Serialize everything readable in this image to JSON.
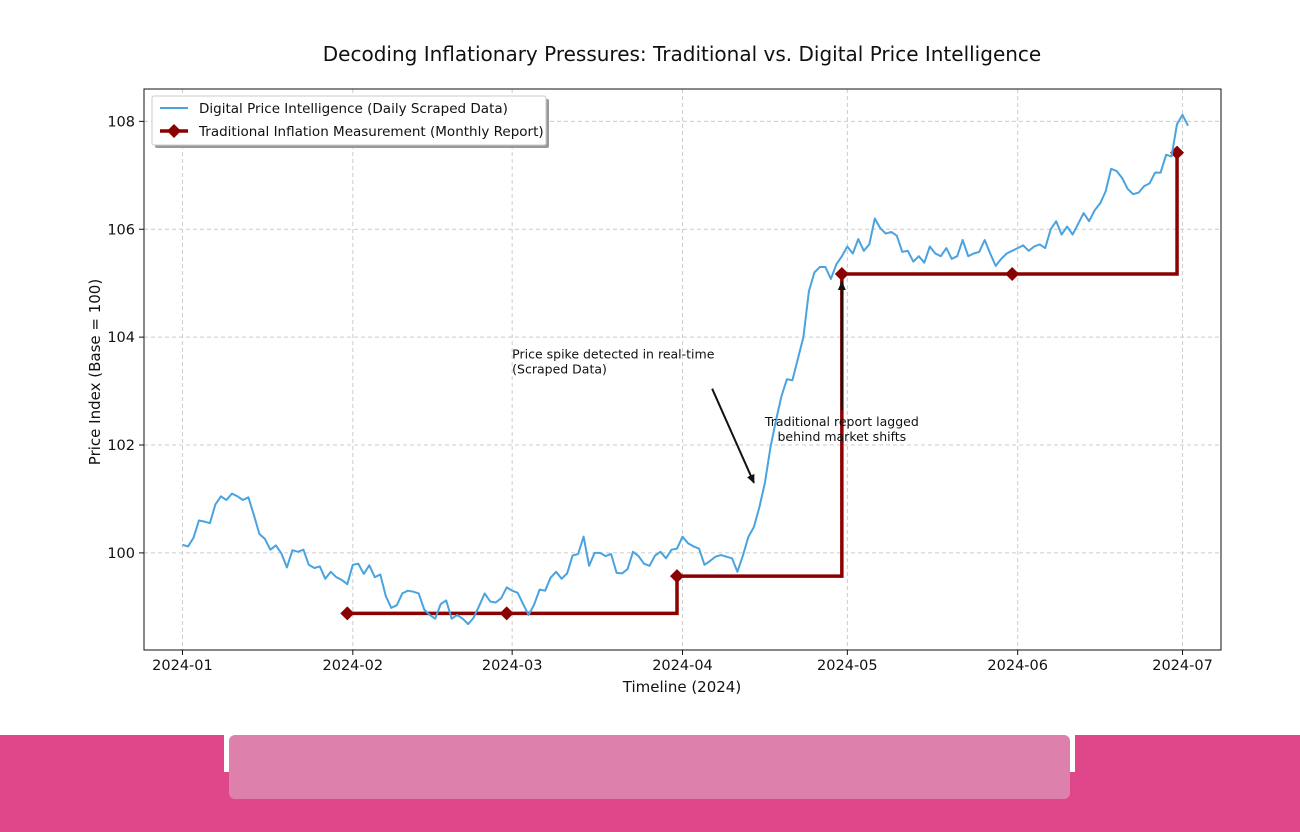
{
  "colors": {
    "digital": "#4aa3df",
    "traditional": "#8b0000",
    "grid": "#cccccc",
    "footer": "#e0468a",
    "footer_field": "#dd80ab"
  },
  "chart_data": {
    "type": "line",
    "title": "Decoding Inflationary Pressures: Traditional vs. Digital Price Intelligence",
    "xlabel": "Timeline (2024)",
    "ylabel": "Price Index (Base = 100)",
    "x_ticks": [
      "2024-01",
      "2024-02",
      "2024-03",
      "2024-04",
      "2024-05",
      "2024-06",
      "2024-07"
    ],
    "y_ticks": [
      100,
      102,
      104,
      106,
      108
    ],
    "xlim": [
      "2023-12-25",
      "2024-07-08"
    ],
    "ylim": [
      98.2,
      108.6
    ],
    "grid": true,
    "legend_position": "top-left",
    "series": [
      {
        "name": "Digital Price Intelligence (Daily Scraped Data)",
        "style": "line",
        "start_date": "2024-01-01",
        "step_days": 1,
        "values": [
          100.15,
          100.12,
          100.28,
          100.6,
          100.58,
          100.55,
          100.9,
          101.05,
          100.98,
          101.1,
          101.05,
          100.98,
          101.03,
          100.7,
          100.35,
          100.26,
          100.06,
          100.14,
          99.99,
          99.73,
          100.05,
          100.02,
          100.06,
          99.78,
          99.72,
          99.75,
          99.52,
          99.65,
          99.55,
          99.5,
          99.42,
          99.78,
          99.8,
          99.61,
          99.77,
          99.55,
          99.6,
          99.2,
          98.98,
          99.03,
          99.25,
          99.3,
          99.28,
          99.25,
          98.95,
          98.85,
          98.78,
          99.05,
          99.12,
          98.78,
          98.85,
          98.78,
          98.68,
          98.8,
          99.02,
          99.25,
          99.1,
          99.08,
          99.16,
          99.36,
          99.3,
          99.26,
          99.05,
          98.85,
          99.04,
          99.32,
          99.3,
          99.54,
          99.65,
          99.52,
          99.62,
          99.95,
          99.98,
          100.3,
          99.76,
          100.0,
          100.0,
          99.94,
          99.98,
          99.63,
          99.62,
          99.7,
          100.02,
          99.94,
          99.8,
          99.76,
          99.95,
          100.02,
          99.9,
          100.06,
          100.08,
          100.3,
          100.18,
          100.12,
          100.08,
          99.78,
          99.85,
          99.93,
          99.96,
          99.93,
          99.9,
          99.65,
          99.95,
          100.3,
          100.48,
          100.85,
          101.3,
          101.95,
          102.45,
          102.9,
          103.22,
          103.2,
          103.6,
          104.0,
          104.85,
          105.2,
          105.3,
          105.3,
          105.08,
          105.35,
          105.5,
          105.68,
          105.55,
          105.82,
          105.6,
          105.72,
          106.2,
          106.02,
          105.92,
          105.95,
          105.88,
          105.58,
          105.6,
          105.4,
          105.5,
          105.38,
          105.68,
          105.55,
          105.5,
          105.65,
          105.45,
          105.5,
          105.8,
          105.5,
          105.55,
          105.58,
          105.8,
          105.55,
          105.32,
          105.45,
          105.55,
          105.6,
          105.65,
          105.7,
          105.6,
          105.68,
          105.72,
          105.65,
          106.0,
          106.15,
          105.9,
          106.05,
          105.9,
          106.1,
          106.3,
          106.15,
          106.35,
          106.48,
          106.7,
          107.12,
          107.08,
          106.95,
          106.75,
          106.65,
          106.68,
          106.8,
          106.85,
          107.05,
          107.05,
          107.38,
          107.35,
          107.95,
          108.12,
          107.92
        ]
      },
      {
        "name": "Traditional Inflation Measurement (Monthly Report)",
        "style": "step-post",
        "marker": "diamond",
        "points": [
          {
            "date": "2024-01-31",
            "value": 98.88
          },
          {
            "date": "2024-02-29",
            "value": 98.88
          },
          {
            "date": "2024-03-31",
            "value": 99.57
          },
          {
            "date": "2024-04-30",
            "value": 105.17
          },
          {
            "date": "2024-05-31",
            "value": 105.17
          },
          {
            "date": "2024-06-30",
            "value": 107.42
          }
        ]
      }
    ],
    "annotations": [
      {
        "lines": [
          "Price spike detected in real-time",
          "(Scraped Data)"
        ],
        "arrow_to": {
          "date": "2024-04-14",
          "value": 101.3
        },
        "text_at": {
          "date": "2024-03-01",
          "value": 103.6
        },
        "align": "left"
      },
      {
        "lines": [
          "Traditional report lagged",
          "behind market shifts"
        ],
        "arrow_to": {
          "date": "2024-04-30",
          "value": 105.17
        },
        "text_at": {
          "date": "2024-04-30",
          "value": 102.35
        },
        "align": "center"
      }
    ]
  }
}
